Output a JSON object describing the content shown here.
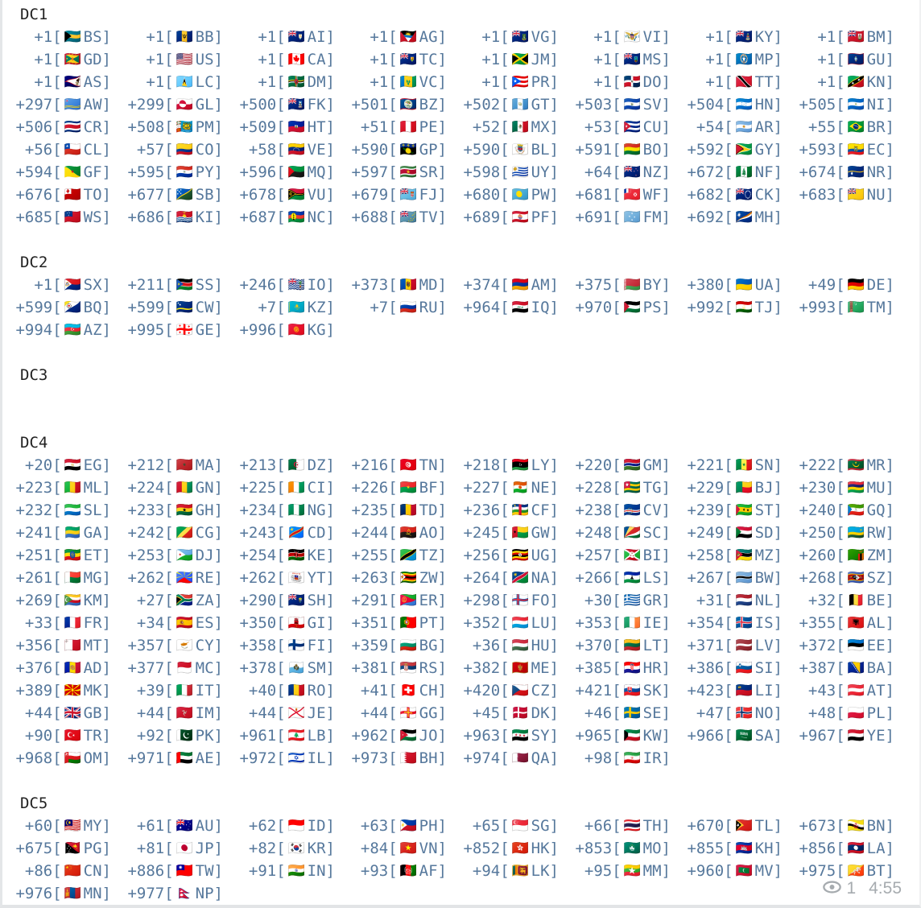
{
  "message": {
    "entry_format": {
      "open": "[",
      "close": "]"
    },
    "sections": [
      {
        "title": "DC1",
        "entries": [
          [
            "+1",
            "BS",
            "🇧🇸"
          ],
          [
            "+1",
            "BB",
            "🇧🇧"
          ],
          [
            "+1",
            "AI",
            "🇦🇮"
          ],
          [
            "+1",
            "AG",
            "🇦🇬"
          ],
          [
            "+1",
            "VG",
            "🇻🇬"
          ],
          [
            "+1",
            "VI",
            "🇻🇮"
          ],
          [
            "+1",
            "KY",
            "🇰🇾"
          ],
          [
            "+1",
            "BM",
            "🇧🇲"
          ],
          [
            "+1",
            "GD",
            "🇬🇩"
          ],
          [
            "+1",
            "US",
            "🇺🇸"
          ],
          [
            "+1",
            "CA",
            "🇨🇦"
          ],
          [
            "+1",
            "TC",
            "🇹🇨"
          ],
          [
            "+1",
            "JM",
            "🇯🇲"
          ],
          [
            "+1",
            "MS",
            "🇲🇸"
          ],
          [
            "+1",
            "MP",
            "🇲🇵"
          ],
          [
            "+1",
            "GU",
            "🇬🇺"
          ],
          [
            "+1",
            "AS",
            "🇦🇸"
          ],
          [
            "+1",
            "LC",
            "🇱🇨"
          ],
          [
            "+1",
            "DM",
            "🇩🇲"
          ],
          [
            "+1",
            "VC",
            "🇻🇨"
          ],
          [
            "+1",
            "PR",
            "🇵🇷"
          ],
          [
            "+1",
            "DO",
            "🇩🇴"
          ],
          [
            "+1",
            "TT",
            "🇹🇹"
          ],
          [
            "+1",
            "KN",
            "🇰🇳"
          ],
          [
            "+297",
            "AW",
            "🇦🇼"
          ],
          [
            "+299",
            "GL",
            "🇬🇱"
          ],
          [
            "+500",
            "FK",
            "🇫🇰"
          ],
          [
            "+501",
            "BZ",
            "🇧🇿"
          ],
          [
            "+502",
            "GT",
            "🇬🇹"
          ],
          [
            "+503",
            "SV",
            "🇸🇻"
          ],
          [
            "+504",
            "HN",
            "🇭🇳"
          ],
          [
            "+505",
            "NI",
            "🇳🇮"
          ],
          [
            "+506",
            "CR",
            "🇨🇷"
          ],
          [
            "+508",
            "PM",
            "🇵🇲"
          ],
          [
            "+509",
            "HT",
            "🇭🇹"
          ],
          [
            "+51",
            "PE",
            "🇵🇪"
          ],
          [
            "+52",
            "MX",
            "🇲🇽"
          ],
          [
            "+53",
            "CU",
            "🇨🇺"
          ],
          [
            "+54",
            "AR",
            "🇦🇷"
          ],
          [
            "+55",
            "BR",
            "🇧🇷"
          ],
          [
            "+56",
            "CL",
            "🇨🇱"
          ],
          [
            "+57",
            "CO",
            "🇨🇴"
          ],
          [
            "+58",
            "VE",
            "🇻🇪"
          ],
          [
            "+590",
            "GP",
            "🇬🇵"
          ],
          [
            "+590",
            "BL",
            "🇧🇱"
          ],
          [
            "+591",
            "BO",
            "🇧🇴"
          ],
          [
            "+592",
            "GY",
            "🇬🇾"
          ],
          [
            "+593",
            "EC",
            "🇪🇨"
          ],
          [
            "+594",
            "GF",
            "🇬🇫"
          ],
          [
            "+595",
            "PY",
            "🇵🇾"
          ],
          [
            "+596",
            "MQ",
            "🇲🇶"
          ],
          [
            "+597",
            "SR",
            "🇸🇷"
          ],
          [
            "+598",
            "UY",
            "🇺🇾"
          ],
          [
            "+64",
            "NZ",
            "🇳🇿"
          ],
          [
            "+672",
            "NF",
            "🇳🇫"
          ],
          [
            "+674",
            "NR",
            "🇳🇷"
          ],
          [
            "+676",
            "TO",
            "🇹🇴"
          ],
          [
            "+677",
            "SB",
            "🇸🇧"
          ],
          [
            "+678",
            "VU",
            "🇻🇺"
          ],
          [
            "+679",
            "FJ",
            "🇫🇯"
          ],
          [
            "+680",
            "PW",
            "🇵🇼"
          ],
          [
            "+681",
            "WF",
            "🇼🇫"
          ],
          [
            "+682",
            "CK",
            "🇨🇰"
          ],
          [
            "+683",
            "NU",
            "🇳🇺"
          ],
          [
            "+685",
            "WS",
            "🇼🇸"
          ],
          [
            "+686",
            "KI",
            "🇰🇮"
          ],
          [
            "+687",
            "NC",
            "🇳🇨"
          ],
          [
            "+688",
            "TV",
            "🇹🇻"
          ],
          [
            "+689",
            "PF",
            "🇵🇫"
          ],
          [
            "+691",
            "FM",
            "🇫🇲"
          ],
          [
            "+692",
            "MH",
            "🇲🇭"
          ]
        ]
      },
      {
        "title": "DC2",
        "entries": [
          [
            "+1",
            "SX",
            "🇸🇽"
          ],
          [
            "+211",
            "SS",
            "🇸🇸"
          ],
          [
            "+246",
            "IO",
            "🇮🇴"
          ],
          [
            "+373",
            "MD",
            "🇲🇩"
          ],
          [
            "+374",
            "AM",
            "🇦🇲"
          ],
          [
            "+375",
            "BY",
            "🇧🇾"
          ],
          [
            "+380",
            "UA",
            "🇺🇦"
          ],
          [
            "+49",
            "DE",
            "🇩🇪"
          ],
          [
            "+599",
            "BQ",
            "🇧🇶"
          ],
          [
            "+599",
            "CW",
            "🇨🇼"
          ],
          [
            "+7",
            "KZ",
            "🇰🇿"
          ],
          [
            "+7",
            "RU",
            "🇷🇺"
          ],
          [
            "+964",
            "IQ",
            "🇮🇶"
          ],
          [
            "+970",
            "PS",
            "🇵🇸"
          ],
          [
            "+992",
            "TJ",
            "🇹🇯"
          ],
          [
            "+993",
            "TM",
            "🇹🇲"
          ],
          [
            "+994",
            "AZ",
            "🇦🇿"
          ],
          [
            "+995",
            "GE",
            "🇬🇪"
          ],
          [
            "+996",
            "KG",
            "🇰🇬"
          ]
        ]
      },
      {
        "title": "DC3",
        "entries": []
      },
      {
        "title": "DC4",
        "entries": [
          [
            "+20",
            "EG",
            "🇪🇬"
          ],
          [
            "+212",
            "MA",
            "🇲🇦"
          ],
          [
            "+213",
            "DZ",
            "🇩🇿"
          ],
          [
            "+216",
            "TN",
            "🇹🇳"
          ],
          [
            "+218",
            "LY",
            "🇱🇾"
          ],
          [
            "+220",
            "GM",
            "🇬🇲"
          ],
          [
            "+221",
            "SN",
            "🇸🇳"
          ],
          [
            "+222",
            "MR",
            "🇲🇷"
          ],
          [
            "+223",
            "ML",
            "🇲🇱"
          ],
          [
            "+224",
            "GN",
            "🇬🇳"
          ],
          [
            "+225",
            "CI",
            "🇨🇮"
          ],
          [
            "+226",
            "BF",
            "🇧🇫"
          ],
          [
            "+227",
            "NE",
            "🇳🇪"
          ],
          [
            "+228",
            "TG",
            "🇹🇬"
          ],
          [
            "+229",
            "BJ",
            "🇧🇯"
          ],
          [
            "+230",
            "MU",
            "🇲🇺"
          ],
          [
            "+232",
            "SL",
            "🇸🇱"
          ],
          [
            "+233",
            "GH",
            "🇬🇭"
          ],
          [
            "+234",
            "NG",
            "🇳🇬"
          ],
          [
            "+235",
            "TD",
            "🇹🇩"
          ],
          [
            "+236",
            "CF",
            "🇨🇫"
          ],
          [
            "+238",
            "CV",
            "🇨🇻"
          ],
          [
            "+239",
            "ST",
            "🇸🇹"
          ],
          [
            "+240",
            "GQ",
            "🇬🇶"
          ],
          [
            "+241",
            "GA",
            "🇬🇦"
          ],
          [
            "+242",
            "CG",
            "🇨🇬"
          ],
          [
            "+243",
            "CD",
            "🇨🇩"
          ],
          [
            "+244",
            "AO",
            "🇦🇴"
          ],
          [
            "+245",
            "GW",
            "🇬🇼"
          ],
          [
            "+248",
            "SC",
            "🇸🇨"
          ],
          [
            "+249",
            "SD",
            "🇸🇩"
          ],
          [
            "+250",
            "RW",
            "🇷🇼"
          ],
          [
            "+251",
            "ET",
            "🇪🇹"
          ],
          [
            "+253",
            "DJ",
            "🇩🇯"
          ],
          [
            "+254",
            "KE",
            "🇰🇪"
          ],
          [
            "+255",
            "TZ",
            "🇹🇿"
          ],
          [
            "+256",
            "UG",
            "🇺🇬"
          ],
          [
            "+257",
            "BI",
            "🇧🇮"
          ],
          [
            "+258",
            "MZ",
            "🇲🇿"
          ],
          [
            "+260",
            "ZM",
            "🇿🇲"
          ],
          [
            "+261",
            "MG",
            "🇲🇬"
          ],
          [
            "+262",
            "RE",
            "🇷🇪"
          ],
          [
            "+262",
            "YT",
            "🇾🇹"
          ],
          [
            "+263",
            "ZW",
            "🇿🇼"
          ],
          [
            "+264",
            "NA",
            "🇳🇦"
          ],
          [
            "+266",
            "LS",
            "🇱🇸"
          ],
          [
            "+267",
            "BW",
            "🇧🇼"
          ],
          [
            "+268",
            "SZ",
            "🇸🇿"
          ],
          [
            "+269",
            "KM",
            "🇰🇲"
          ],
          [
            "+27",
            "ZA",
            "🇿🇦"
          ],
          [
            "+290",
            "SH",
            "🇸🇭"
          ],
          [
            "+291",
            "ER",
            "🇪🇷"
          ],
          [
            "+298",
            "FO",
            "🇫🇴"
          ],
          [
            "+30",
            "GR",
            "🇬🇷"
          ],
          [
            "+31",
            "NL",
            "🇳🇱"
          ],
          [
            "+32",
            "BE",
            "🇧🇪"
          ],
          [
            "+33",
            "FR",
            "🇫🇷"
          ],
          [
            "+34",
            "ES",
            "🇪🇸"
          ],
          [
            "+350",
            "GI",
            "🇬🇮"
          ],
          [
            "+351",
            "PT",
            "🇵🇹"
          ],
          [
            "+352",
            "LU",
            "🇱🇺"
          ],
          [
            "+353",
            "IE",
            "🇮🇪"
          ],
          [
            "+354",
            "IS",
            "🇮🇸"
          ],
          [
            "+355",
            "AL",
            "🇦🇱"
          ],
          [
            "+356",
            "MT",
            "🇲🇹"
          ],
          [
            "+357",
            "CY",
            "🇨🇾"
          ],
          [
            "+358",
            "FI",
            "🇫🇮"
          ],
          [
            "+359",
            "BG",
            "🇧🇬"
          ],
          [
            "+36",
            "HU",
            "🇭🇺"
          ],
          [
            "+370",
            "LT",
            "🇱🇹"
          ],
          [
            "+371",
            "LV",
            "🇱🇻"
          ],
          [
            "+372",
            "EE",
            "🇪🇪"
          ],
          [
            "+376",
            "AD",
            "🇦🇩"
          ],
          [
            "+377",
            "MC",
            "🇲🇨"
          ],
          [
            "+378",
            "SM",
            "🇸🇲"
          ],
          [
            "+381",
            "RS",
            "🇷🇸"
          ],
          [
            "+382",
            "ME",
            "🇲🇪"
          ],
          [
            "+385",
            "HR",
            "🇭🇷"
          ],
          [
            "+386",
            "SI",
            "🇸🇮"
          ],
          [
            "+387",
            "BA",
            "🇧🇦"
          ],
          [
            "+389",
            "MK",
            "🇲🇰"
          ],
          [
            "+39",
            "IT",
            "🇮🇹"
          ],
          [
            "+40",
            "RO",
            "🇷🇴"
          ],
          [
            "+41",
            "CH",
            "🇨🇭"
          ],
          [
            "+420",
            "CZ",
            "🇨🇿"
          ],
          [
            "+421",
            "SK",
            "🇸🇰"
          ],
          [
            "+423",
            "LI",
            "🇱🇮"
          ],
          [
            "+43",
            "AT",
            "🇦🇹"
          ],
          [
            "+44",
            "GB",
            "🇬🇧"
          ],
          [
            "+44",
            "IM",
            "🇮🇲"
          ],
          [
            "+44",
            "JE",
            "🇯🇪"
          ],
          [
            "+44",
            "GG",
            "🇬🇬"
          ],
          [
            "+45",
            "DK",
            "🇩🇰"
          ],
          [
            "+46",
            "SE",
            "🇸🇪"
          ],
          [
            "+47",
            "NO",
            "🇳🇴"
          ],
          [
            "+48",
            "PL",
            "🇵🇱"
          ],
          [
            "+90",
            "TR",
            "🇹🇷"
          ],
          [
            "+92",
            "PK",
            "🇵🇰"
          ],
          [
            "+961",
            "LB",
            "🇱🇧"
          ],
          [
            "+962",
            "JO",
            "🇯🇴"
          ],
          [
            "+963",
            "SY",
            "🇸🇾"
          ],
          [
            "+965",
            "KW",
            "🇰🇼"
          ],
          [
            "+966",
            "SA",
            "🇸🇦"
          ],
          [
            "+967",
            "YE",
            "🇾🇪"
          ],
          [
            "+968",
            "OM",
            "🇴🇲"
          ],
          [
            "+971",
            "AE",
            "🇦🇪"
          ],
          [
            "+972",
            "IL",
            "🇮🇱"
          ],
          [
            "+973",
            "BH",
            "🇧🇭"
          ],
          [
            "+974",
            "QA",
            "🇶🇦"
          ],
          [
            "+98",
            "IR",
            "🇮🇷"
          ]
        ]
      },
      {
        "title": "DC5",
        "entries": [
          [
            "+60",
            "MY",
            "🇲🇾"
          ],
          [
            "+61",
            "AU",
            "🇦🇺"
          ],
          [
            "+62",
            "ID",
            "🇮🇩"
          ],
          [
            "+63",
            "PH",
            "🇵🇭"
          ],
          [
            "+65",
            "SG",
            "🇸🇬"
          ],
          [
            "+66",
            "TH",
            "🇹🇭"
          ],
          [
            "+670",
            "TL",
            "🇹🇱"
          ],
          [
            "+673",
            "BN",
            "🇧🇳"
          ],
          [
            "+675",
            "PG",
            "🇵🇬"
          ],
          [
            "+81",
            "JP",
            "🇯🇵"
          ],
          [
            "+82",
            "KR",
            "🇰🇷"
          ],
          [
            "+84",
            "VN",
            "🇻🇳"
          ],
          [
            "+852",
            "HK",
            "🇭🇰"
          ],
          [
            "+853",
            "MO",
            "🇲🇴"
          ],
          [
            "+855",
            "KH",
            "🇰🇭"
          ],
          [
            "+856",
            "LA",
            "🇱🇦"
          ],
          [
            "+86",
            "CN",
            "🇨🇳"
          ],
          [
            "+886",
            "TW",
            "🇹🇼"
          ],
          [
            "+91",
            "IN",
            "🇮🇳"
          ],
          [
            "+93",
            "AF",
            "🇦🇫"
          ],
          [
            "+94",
            "LK",
            "🇱🇰"
          ],
          [
            "+95",
            "MM",
            "🇲🇲"
          ],
          [
            "+960",
            "MV",
            "🇲🇻"
          ],
          [
            "+975",
            "BT",
            "🇧🇹"
          ],
          [
            "+976",
            "MN",
            "🇲🇳"
          ],
          [
            "+977",
            "NP",
            "🇳🇵"
          ]
        ]
      }
    ],
    "footer": {
      "views": "1",
      "time": "4:55"
    }
  },
  "colors": {
    "entry_text": "#56789c",
    "section_title_text": "#222222",
    "footer_text": "#a6abaf",
    "background": "#ffffff"
  }
}
